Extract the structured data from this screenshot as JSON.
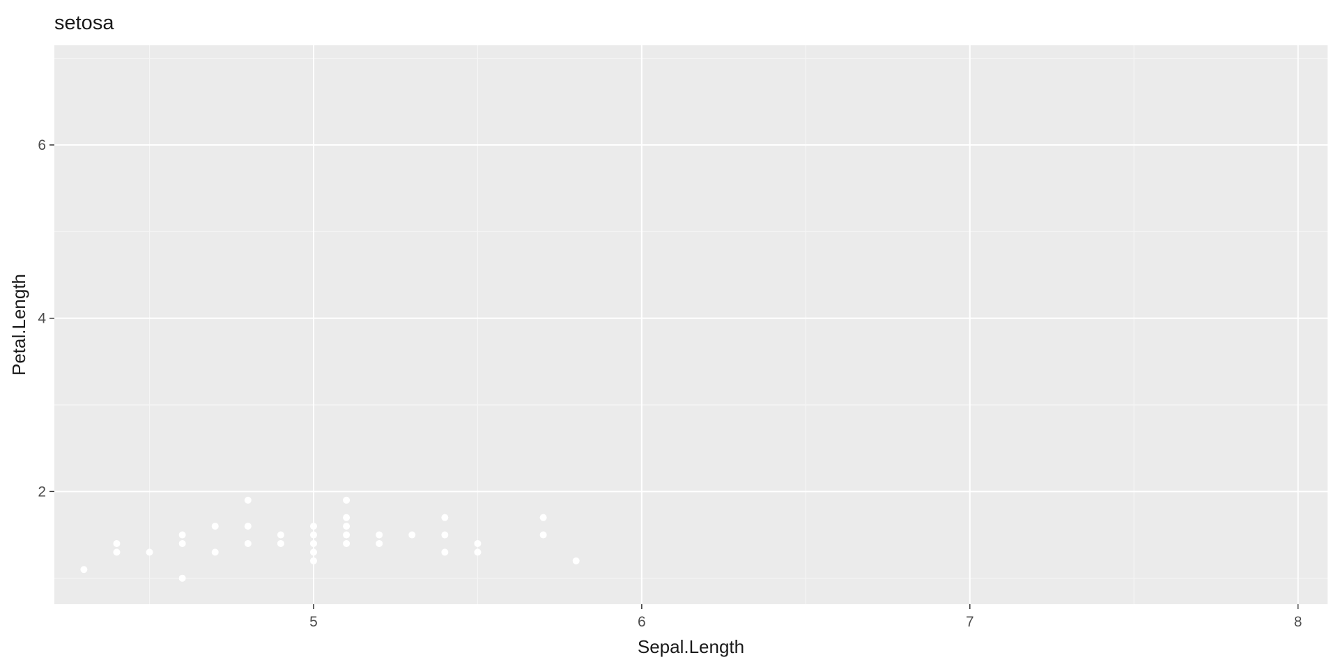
{
  "chart_data": {
    "type": "scatter",
    "title": "setosa",
    "xlabel": "Sepal.Length",
    "ylabel": "Petal.Length",
    "xlim": [
      4.21,
      8.09
    ],
    "ylim": [
      0.7,
      7.15
    ],
    "x_ticks": [
      5,
      6,
      7,
      8
    ],
    "y_ticks": [
      2,
      4,
      6
    ],
    "x_tick_labels": [
      "5",
      "6",
      "7",
      "8"
    ],
    "y_tick_labels": [
      "2",
      "4",
      "6"
    ],
    "grid": true,
    "points": [
      {
        "x": 4.3,
        "y": 1.1
      },
      {
        "x": 4.4,
        "y": 1.3
      },
      {
        "x": 4.4,
        "y": 1.4
      },
      {
        "x": 4.5,
        "y": 1.3
      },
      {
        "x": 4.6,
        "y": 1.0
      },
      {
        "x": 4.6,
        "y": 1.4
      },
      {
        "x": 4.6,
        "y": 1.5
      },
      {
        "x": 4.7,
        "y": 1.3
      },
      {
        "x": 4.7,
        "y": 1.6
      },
      {
        "x": 4.8,
        "y": 1.4
      },
      {
        "x": 4.8,
        "y": 1.6
      },
      {
        "x": 4.8,
        "y": 1.9
      },
      {
        "x": 4.9,
        "y": 1.4
      },
      {
        "x": 4.9,
        "y": 1.5
      },
      {
        "x": 5.0,
        "y": 1.2
      },
      {
        "x": 5.0,
        "y": 1.3
      },
      {
        "x": 5.0,
        "y": 1.4
      },
      {
        "x": 5.0,
        "y": 1.5
      },
      {
        "x": 5.0,
        "y": 1.6
      },
      {
        "x": 5.1,
        "y": 1.4
      },
      {
        "x": 5.1,
        "y": 1.5
      },
      {
        "x": 5.1,
        "y": 1.6
      },
      {
        "x": 5.1,
        "y": 1.7
      },
      {
        "x": 5.1,
        "y": 1.9
      },
      {
        "x": 5.2,
        "y": 1.4
      },
      {
        "x": 5.2,
        "y": 1.5
      },
      {
        "x": 5.3,
        "y": 1.5
      },
      {
        "x": 5.4,
        "y": 1.3
      },
      {
        "x": 5.4,
        "y": 1.5
      },
      {
        "x": 5.4,
        "y": 1.7
      },
      {
        "x": 5.5,
        "y": 1.3
      },
      {
        "x": 5.5,
        "y": 1.4
      },
      {
        "x": 5.7,
        "y": 1.5
      },
      {
        "x": 5.7,
        "y": 1.7
      },
      {
        "x": 5.8,
        "y": 1.2
      }
    ]
  },
  "colors": {
    "panel_background": "#ebebeb",
    "grid_major": "#ffffff",
    "grid_minor": "#f5f5f5",
    "point": "#ffffff",
    "tick_label": "#4d4d4d",
    "text": "#1a1a1a"
  }
}
